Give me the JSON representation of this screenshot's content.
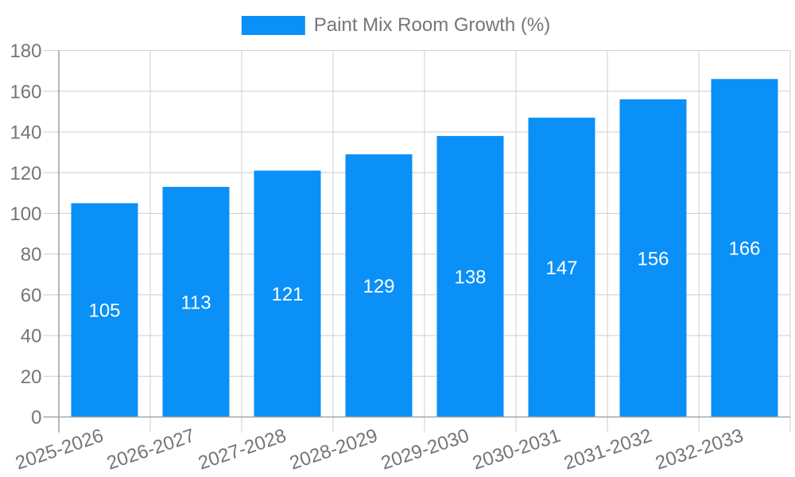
{
  "chart_data": {
    "type": "bar",
    "title": "Paint Mix Room Growth (%)",
    "categories": [
      "2025-2026",
      "2026-2027",
      "2027-2028",
      "2028-2029",
      "2029-2030",
      "2030-2031",
      "2031-2032",
      "2032-2033"
    ],
    "values": [
      105,
      113,
      121,
      129,
      138,
      147,
      156,
      166
    ],
    "xlabel": "",
    "ylabel": "",
    "ylim": [
      0,
      180
    ],
    "ytick_step": 20,
    "grid": true,
    "legend_position": "top",
    "x_label_rotation_deg": -18.6,
    "colors": {
      "bar": "#0a90f7",
      "grid": "#d3d3d3",
      "axis": "#a4a4a4",
      "label": "#757575",
      "value_label": "#ffffff",
      "background": "#ffffff"
    }
  }
}
